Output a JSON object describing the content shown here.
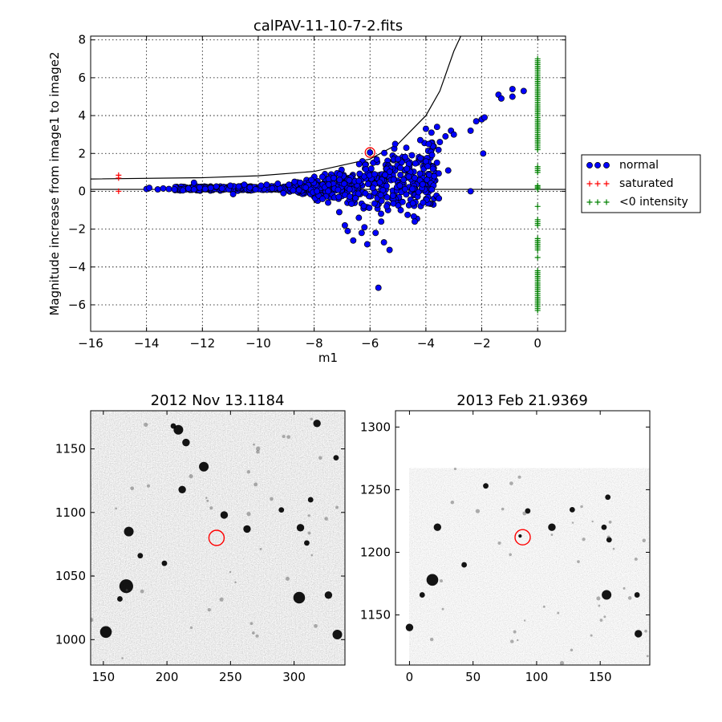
{
  "chart_data": [
    {
      "type": "scatter",
      "title": "calPAV-11-10-7-2.fits",
      "xlabel": "m1",
      "ylabel": "Magnitude increase from image1 to image2",
      "xlim": [
        -16,
        1
      ],
      "ylim": [
        -7.4,
        8.2
      ],
      "xticks": [
        -16,
        -14,
        -12,
        -10,
        -8,
        -6,
        -4,
        -2,
        0
      ],
      "yticks": [
        -6,
        -4,
        -2,
        0,
        2,
        4,
        6,
        8
      ],
      "grid": true,
      "legend_position": "outside-right",
      "series": [
        {
          "name": "normal",
          "marker": "circle",
          "color": "#0000ff",
          "points": [
            [
              -14.0,
              0.12
            ],
            [
              -13.9,
              0.18
            ],
            [
              -13.6,
              0.1
            ],
            [
              -13.4,
              0.15
            ],
            [
              -13.2,
              0.12
            ],
            [
              -13.0,
              0.1
            ],
            [
              -12.7,
              0.05
            ],
            [
              -12.5,
              0.15
            ],
            [
              -12.3,
              0.45
            ],
            [
              -12.3,
              0.1
            ],
            [
              -12.1,
              0.2
            ],
            [
              -11.9,
              0.12
            ],
            [
              -11.7,
              0.18
            ],
            [
              -11.5,
              0.25
            ],
            [
              -11.3,
              0.15
            ],
            [
              -11.0,
              0.3
            ],
            [
              -10.9,
              -0.15
            ],
            [
              -10.7,
              0.25
            ],
            [
              -10.5,
              0.35
            ],
            [
              -10.3,
              0.2
            ],
            [
              -10.1,
              0.1
            ],
            [
              -9.9,
              0.3
            ],
            [
              -9.7,
              0.35
            ],
            [
              -9.5,
              0.15
            ],
            [
              -9.3,
              0.4
            ],
            [
              -9.1,
              -0.1
            ],
            [
              -8.9,
              0.35
            ],
            [
              -8.7,
              0.5
            ],
            [
              -8.5,
              0.45
            ],
            [
              -8.3,
              0.2
            ],
            [
              -8.1,
              0.6
            ],
            [
              -7.9,
              0.0
            ],
            [
              -7.7,
              -0.4
            ],
            [
              -7.5,
              -0.6
            ],
            [
              -7.3,
              0.7
            ],
            [
              -7.1,
              -1.1
            ],
            [
              -6.9,
              -1.8
            ],
            [
              -6.8,
              -2.1
            ],
            [
              -6.6,
              -2.6
            ],
            [
              -6.4,
              -1.4
            ],
            [
              -6.3,
              -2.2
            ],
            [
              -6.2,
              -1.9
            ],
            [
              -6.1,
              -2.8
            ],
            [
              -6.0,
              2.05
            ],
            [
              -5.8,
              -2.2
            ],
            [
              -5.7,
              -5.1
            ],
            [
              -5.6,
              -1.6
            ],
            [
              -5.5,
              -2.7
            ],
            [
              -5.4,
              -0.8
            ],
            [
              -5.3,
              -3.1
            ],
            [
              -5.1,
              2.5
            ],
            [
              -5.0,
              1.7
            ],
            [
              -4.9,
              -1.0
            ],
            [
              -4.7,
              2.3
            ],
            [
              -4.5,
              1.9
            ],
            [
              -4.4,
              -1.6
            ],
            [
              -4.2,
              2.7
            ],
            [
              -4.1,
              -0.6
            ],
            [
              -4.0,
              3.3
            ],
            [
              -3.9,
              2.5
            ],
            [
              -3.8,
              3.1
            ],
            [
              -3.7,
              0.8
            ],
            [
              -3.6,
              3.4
            ],
            [
              -3.5,
              2.6
            ],
            [
              -3.3,
              2.9
            ],
            [
              -3.2,
              1.1
            ],
            [
              -3.1,
              3.2
            ],
            [
              -3.0,
              3.0
            ],
            [
              -2.4,
              0.0
            ],
            [
              -2.4,
              3.2
            ],
            [
              -2.2,
              3.7
            ],
            [
              -2.0,
              3.8
            ],
            [
              -1.9,
              3.9
            ],
            [
              -1.95,
              2.0
            ],
            [
              -1.4,
              5.1
            ],
            [
              -1.3,
              4.9
            ],
            [
              -0.9,
              5.4
            ],
            [
              -0.9,
              5.0
            ],
            [
              -0.5,
              5.3
            ]
          ]
        },
        {
          "name": "saturated",
          "marker": "plus",
          "color": "#ff0000",
          "points": [
            [
              -15.0,
              0.85
            ],
            [
              -15.0,
              0.7
            ],
            [
              -15.0,
              0.0
            ]
          ]
        },
        {
          "name": "<0 intensity",
          "marker": "plus",
          "color": "#008000",
          "points": [
            [
              0,
              7.0
            ],
            [
              0,
              6.7
            ],
            [
              0,
              6.4
            ],
            [
              0,
              6.1
            ],
            [
              0,
              5.8
            ],
            [
              0,
              5.5
            ],
            [
              0,
              5.2
            ],
            [
              0,
              4.9
            ],
            [
              0,
              4.6
            ],
            [
              0,
              4.3
            ],
            [
              0,
              4.0
            ],
            [
              0,
              3.7
            ],
            [
              0,
              3.4
            ],
            [
              0,
              3.1
            ],
            [
              0,
              2.8
            ],
            [
              0,
              2.5
            ],
            [
              0,
              2.2
            ],
            [
              0,
              1.3
            ],
            [
              0,
              1.0
            ],
            [
              0,
              0.3
            ],
            [
              0,
              0.1
            ],
            [
              0,
              -0.8
            ],
            [
              0,
              -1.5
            ],
            [
              0,
              -1.8
            ],
            [
              0,
              -2.5
            ],
            [
              0,
              -2.8
            ],
            [
              0,
              -3.1
            ],
            [
              0,
              -3.5
            ],
            [
              0,
              -4.2
            ],
            [
              0,
              -4.5
            ],
            [
              0,
              -4.8
            ],
            [
              0,
              -5.1
            ],
            [
              0,
              -5.4
            ],
            [
              0,
              -5.7
            ],
            [
              0,
              -6.0
            ],
            [
              0,
              -6.3
            ]
          ]
        }
      ],
      "lines": [
        {
          "kind": "horizontal",
          "y": 0.1,
          "color": "#000000"
        },
        {
          "kind": "curve",
          "description": "threshold curve",
          "points": [
            [
              -16,
              0.65
            ],
            [
              -12,
              0.72
            ],
            [
              -10,
              0.82
            ],
            [
              -8,
              1.05
            ],
            [
              -6,
              1.7
            ],
            [
              -5,
              2.5
            ],
            [
              -4,
              4.0
            ],
            [
              -3.5,
              5.3
            ],
            [
              -3,
              7.4
            ],
            [
              -2.75,
              8.2
            ]
          ],
          "color": "#000000"
        }
      ],
      "highlight": {
        "x": -6.0,
        "y": 2.05,
        "color": "#ff0000"
      }
    },
    {
      "type": "image",
      "title": "2012 Nov 13.1184",
      "xlim": [
        140,
        340
      ],
      "ylim": [
        980,
        1180
      ],
      "xticks": [
        150,
        200,
        250,
        300
      ],
      "yticks": [
        1000,
        1050,
        1100,
        1150
      ],
      "colormap": "gray_r",
      "marker": {
        "x": 239,
        "y": 1080,
        "color": "#ff0000"
      },
      "stars": [
        [
          209,
          1165,
          4
        ],
        [
          215,
          1155,
          3
        ],
        [
          205,
          1168,
          2
        ],
        [
          318,
          1170,
          3
        ],
        [
          333,
          1143,
          2
        ],
        [
          229,
          1136,
          4
        ],
        [
          212,
          1118,
          3
        ],
        [
          170,
          1085,
          4
        ],
        [
          245,
          1098,
          3
        ],
        [
          263,
          1087,
          3
        ],
        [
          305,
          1088,
          3
        ],
        [
          310,
          1076,
          2
        ],
        [
          313,
          1110,
          2
        ],
        [
          168,
          1042,
          6
        ],
        [
          163,
          1032,
          2
        ],
        [
          152,
          1006,
          5
        ],
        [
          304,
          1033,
          5
        ],
        [
          327,
          1035,
          3
        ],
        [
          334,
          1004,
          4
        ],
        [
          198,
          1060,
          2
        ],
        [
          290,
          1102,
          2
        ],
        [
          179,
          1066,
          2
        ]
      ]
    },
    {
      "type": "image",
      "title": "2013 Feb 21.9369",
      "xlim": [
        -11,
        189
      ],
      "ylim": [
        1110,
        1313
      ],
      "xticks": [
        0,
        50,
        100,
        150
      ],
      "yticks": [
        1150,
        1200,
        1250,
        1300
      ],
      "data_extent": {
        "x": [
          0,
          189
        ],
        "y": [
          1110,
          1267
        ]
      },
      "colormap": "gray_r",
      "marker": {
        "x": 89,
        "y": 1212,
        "color": "#ff0000"
      },
      "stars": [
        [
          22,
          1220,
          3
        ],
        [
          18,
          1178,
          5
        ],
        [
          10,
          1166,
          2
        ],
        [
          0,
          1140,
          3
        ],
        [
          60,
          1253,
          2
        ],
        [
          93,
          1233,
          2
        ],
        [
          112,
          1220,
          3
        ],
        [
          128,
          1234,
          2
        ],
        [
          153,
          1220,
          2
        ],
        [
          157,
          1210,
          2
        ],
        [
          156,
          1244,
          2
        ],
        [
          155,
          1166,
          4
        ],
        [
          180,
          1135,
          3
        ],
        [
          179,
          1166,
          2
        ],
        [
          87,
          1213,
          1
        ],
        [
          43,
          1190,
          2
        ]
      ]
    }
  ]
}
